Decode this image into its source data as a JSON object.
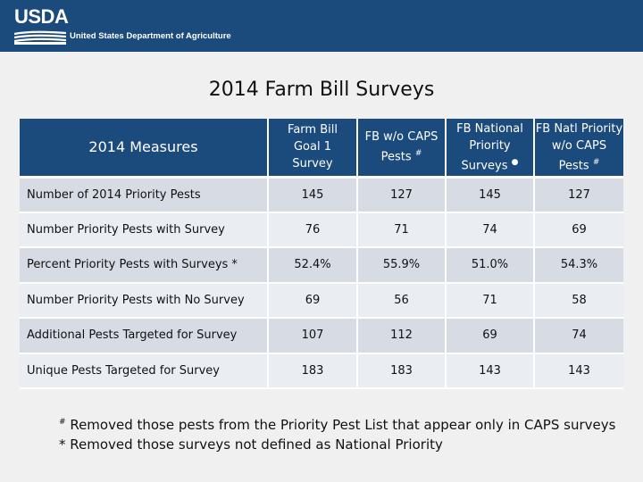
{
  "header": {
    "logo_text": "USDA",
    "department": "United States Department of Agriculture",
    "colors": {
      "header_bg": "#1b4a7c"
    }
  },
  "title": "2014 Farm Bill Surveys",
  "table": {
    "columns": [
      {
        "text": "2014 Measures"
      },
      {
        "text": "Farm Bill Goal 1 Survey"
      },
      {
        "text": "FB w/o CAPS Pests",
        "marker": "#"
      },
      {
        "text": "FB National Priority Surveys",
        "marker": "●"
      },
      {
        "text": "FB Natl Priority w/o CAPS Pests",
        "marker": "#"
      }
    ],
    "rows": [
      {
        "label": "Number of 2014 Priority Pests",
        "values": [
          "145",
          "127",
          "145",
          "127"
        ]
      },
      {
        "label": "Number Priority Pests with Survey",
        "values": [
          "76",
          "71",
          "74",
          "69"
        ]
      },
      {
        "label": "Percent Priority Pests  with Surveys *",
        "values": [
          "52.4%",
          "55.9%",
          "51.0%",
          "54.3%"
        ]
      },
      {
        "label": "Number Priority Pests with No Survey",
        "values": [
          "69",
          "56",
          "71",
          "58"
        ]
      },
      {
        "label": "Additional Pests Targeted for Survey",
        "values": [
          "107",
          "112",
          "69",
          "74"
        ]
      },
      {
        "label": "Unique Pests Targeted for Survey",
        "values": [
          "183",
          "183",
          "143",
          "143"
        ]
      }
    ]
  },
  "notes": [
    {
      "marker": "#",
      "text": "Removed those pests from the Priority Pest List that appear only in CAPS surveys"
    },
    {
      "marker": "*",
      "text": "Removed those surveys not defined as National Priority"
    }
  ]
}
